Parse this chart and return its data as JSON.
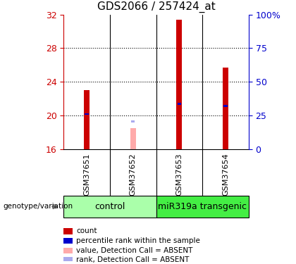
{
  "title": "GDS2066 / 257424_at",
  "samples": [
    "GSM37651",
    "GSM37652",
    "GSM37653",
    "GSM37654"
  ],
  "groups": [
    {
      "name": "control",
      "color": "#aaffaa",
      "start": 0,
      "end": 2
    },
    {
      "name": "miR319a transgenic",
      "color": "#44ee44",
      "start": 2,
      "end": 4
    }
  ],
  "ylim": [
    16,
    32
  ],
  "yticks": [
    16,
    20,
    24,
    28,
    32
  ],
  "y2lim": [
    0,
    100
  ],
  "y2ticks": [
    0,
    25,
    50,
    75,
    100
  ],
  "bar_data": [
    {
      "sample": "GSM37651",
      "value": 23.0,
      "rank": 20.05,
      "absent": false
    },
    {
      "sample": "GSM37652",
      "value": 18.5,
      "rank": null,
      "absent": true,
      "absent_rank": 19.2
    },
    {
      "sample": "GSM37653",
      "value": 31.4,
      "rank": 21.3,
      "absent": false
    },
    {
      "sample": "GSM37654",
      "value": 25.7,
      "rank": 21.0,
      "absent": false
    }
  ],
  "bar_width": 0.12,
  "bar_color_present": "#cc0000",
  "bar_color_absent_value": "#ffaaaa",
  "bar_color_absent_rank": "#aaaaee",
  "rank_marker_color": "#0000cc",
  "label_area_color": "#cccccc",
  "group1_color": "#aaffaa",
  "group2_color": "#44ee44",
  "group_label_fontsize": 9,
  "title_fontsize": 11,
  "tick_label_color_left": "#cc0000",
  "tick_label_color_right": "#0000cc",
  "genotype_label": "genotype/variation",
  "legend_items": [
    {
      "color": "#cc0000",
      "label": "count"
    },
    {
      "color": "#0000cc",
      "label": "percentile rank within the sample"
    },
    {
      "color": "#ffaaaa",
      "label": "value, Detection Call = ABSENT"
    },
    {
      "color": "#aaaaee",
      "label": "rank, Detection Call = ABSENT"
    }
  ]
}
